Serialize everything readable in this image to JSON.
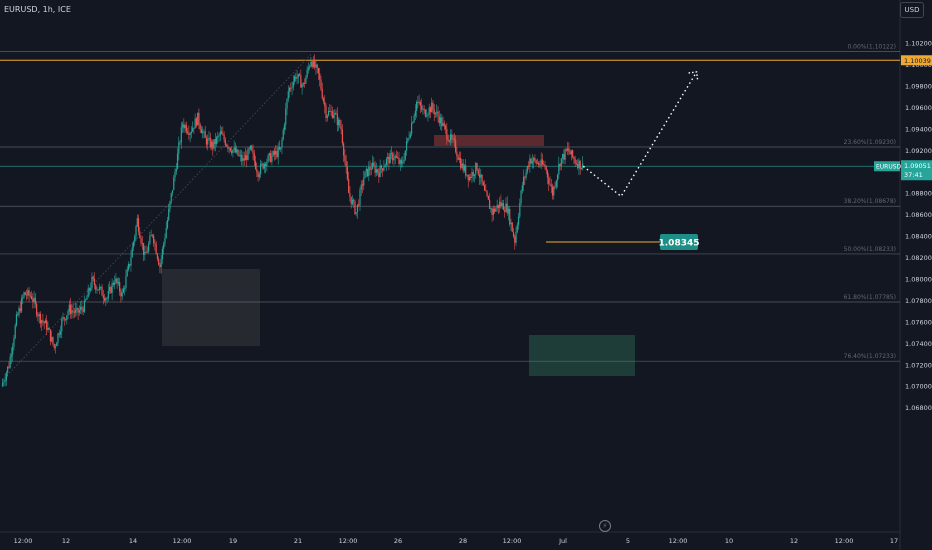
{
  "header": {
    "symbol": "EURUSD, 1h, ICE",
    "currency": "USD"
  },
  "colors": {
    "background": "#131722",
    "up": "#26a69a",
    "down": "#ef5350",
    "fib": "#787b86",
    "resistance": "#f0a830",
    "current": "#26a69a",
    "teal_box": "#1e3d39",
    "red_box": "#5a2a2e",
    "grey_box": "#2a2b33"
  },
  "chart_data": {
    "type": "candlestick",
    "ylim": [
      1.0665,
      1.1025
    ],
    "yticks": [
      "1.10200",
      "1.10000",
      "1.09800",
      "1.09600",
      "1.09400",
      "1.09200",
      "1.09000",
      "1.08800",
      "1.08600",
      "1.08400",
      "1.08200",
      "1.08000",
      "1.07800",
      "1.07600",
      "1.07400",
      "1.07200",
      "1.07000",
      "1.06800"
    ],
    "xticks": [
      "12:00",
      "12",
      "14",
      "12:00",
      "19",
      "21",
      "12:00",
      "26",
      "28",
      "12:00",
      "Jul",
      "5",
      "12:00",
      "10",
      "12",
      "12:00",
      "17"
    ],
    "price_path": [
      [
        0,
        1.07
      ],
      [
        1,
        1.072
      ],
      [
        2,
        1.0762
      ],
      [
        3,
        1.0786
      ],
      [
        4,
        1.0784
      ],
      [
        5,
        1.0765
      ],
      [
        6,
        1.0756
      ],
      [
        7,
        1.0736
      ],
      [
        8,
        1.076
      ],
      [
        9,
        1.0772
      ],
      [
        10,
        1.0768
      ],
      [
        11,
        1.0775
      ],
      [
        12,
        1.0798
      ],
      [
        13,
        1.079
      ],
      [
        14,
        1.0782
      ],
      [
        15,
        1.08
      ],
      [
        16,
        1.0785
      ],
      [
        17,
        1.0815
      ],
      [
        18,
        1.0855
      ],
      [
        19,
        1.082
      ],
      [
        20,
        1.0843
      ],
      [
        21,
        1.0812
      ],
      [
        22,
        1.0855
      ],
      [
        23,
        1.09
      ],
      [
        24,
        1.0945
      ],
      [
        25,
        1.0938
      ],
      [
        26,
        1.095
      ],
      [
        27,
        1.093
      ],
      [
        28,
        1.0924
      ],
      [
        29,
        1.0935
      ],
      [
        30,
        1.0925
      ],
      [
        31,
        1.0918
      ],
      [
        32,
        1.091
      ],
      [
        33,
        1.092
      ],
      [
        34,
        1.09
      ],
      [
        35,
        1.091
      ],
      [
        36,
        1.0915
      ],
      [
        37,
        1.092
      ],
      [
        38,
        1.0975
      ],
      [
        39,
        1.099
      ],
      [
        40,
        1.098
      ],
      [
        41,
        1.1005
      ],
      [
        42,
        1.099
      ],
      [
        43,
        1.0955
      ],
      [
        44,
        1.0955
      ],
      [
        45,
        1.094
      ],
      [
        46,
        1.088
      ],
      [
        47,
        1.0862
      ],
      [
        48,
        1.0895
      ],
      [
        49,
        1.0905
      ],
      [
        50,
        1.09
      ],
      [
        51,
        1.091
      ],
      [
        52,
        1.0915
      ],
      [
        53,
        1.0905
      ],
      [
        54,
        1.0935
      ],
      [
        55,
        1.0965
      ],
      [
        56,
        1.0955
      ],
      [
        57,
        1.096
      ],
      [
        58,
        1.095
      ],
      [
        59,
        1.0935
      ],
      [
        60,
        1.0925
      ],
      [
        61,
        1.0905
      ],
      [
        62,
        1.0895
      ],
      [
        63,
        1.0905
      ],
      [
        64,
        1.088
      ],
      [
        65,
        1.0862
      ],
      [
        66,
        1.087
      ],
      [
        67,
        1.0866
      ],
      [
        68,
        1.0836
      ],
      [
        69,
        1.0888
      ],
      [
        70,
        1.0912
      ],
      [
        71,
        1.0908
      ],
      [
        72,
        1.0905
      ],
      [
        73,
        1.088
      ],
      [
        74,
        1.091
      ],
      [
        75,
        1.092
      ],
      [
        76,
        1.091
      ],
      [
        77,
        1.0905
      ]
    ],
    "fib_levels": [
      {
        "label": "0.00%(1.10122)",
        "value": 1.10122
      },
      {
        "label": "23.60%(1.09230)",
        "value": 1.0923
      },
      {
        "label": "38.20%(1.08678)",
        "value": 1.08678
      },
      {
        "label": "50.00%(1.08233)",
        "value": 1.08233
      },
      {
        "label": "61.80%(1.07785)",
        "value": 1.07785
      },
      {
        "label": "76.40%(1.07233)",
        "value": 1.07233
      }
    ],
    "resistance_value": 1.10039,
    "resistance_label": "1.10039",
    "current_price": "1.09051",
    "current_value": 1.09051,
    "countdown": "37:41",
    "current_tag": "EURUSD",
    "support_value": 1.08345,
    "support_label": "1.08345",
    "projection": [
      [
        77,
        1.0905
      ],
      [
        82,
        1.0877
      ],
      [
        92,
        1.0993
      ]
    ]
  }
}
